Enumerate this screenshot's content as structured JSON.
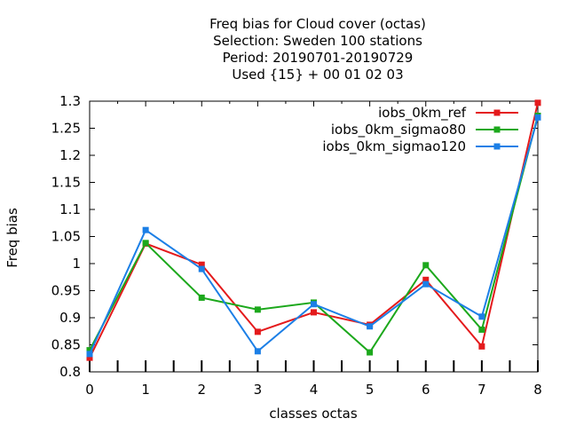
{
  "chart_data": {
    "type": "line",
    "title_lines": [
      "Freq bias  for Cloud cover (octas)",
      "Selection: Sweden    100 stations",
      "Period: 20190701-20190729",
      "Used {15} + 00 01 02 03"
    ],
    "xlabel": "classes octas",
    "ylabel": "Freq bias",
    "xlim": [
      0,
      8
    ],
    "ylim": [
      0.8,
      1.3
    ],
    "x_ticks": [
      "0",
      "1",
      "2",
      "3",
      "4",
      "5",
      "6",
      "7",
      "8"
    ],
    "y_ticks": [
      "0.8",
      "0.85",
      "0.9",
      "0.95",
      "1",
      "1.05",
      "1.1",
      "1.15",
      "1.2",
      "1.25",
      "1.3"
    ],
    "grid": false,
    "legend_position": "top-right",
    "x": [
      0,
      1,
      2,
      3,
      4,
      5,
      6,
      7,
      8
    ],
    "series": [
      {
        "name": "iobs_0km_ref",
        "color": "#e41a1c",
        "values": [
          0.826,
          1.037,
          0.998,
          0.874,
          0.91,
          0.887,
          0.97,
          0.847,
          1.297
        ]
      },
      {
        "name": "iobs_0km_sigmao80",
        "color": "#1ca81c",
        "values": [
          0.84,
          1.038,
          0.937,
          0.915,
          0.928,
          0.836,
          0.997,
          0.878,
          1.273
        ]
      },
      {
        "name": "iobs_0km_sigmao120",
        "color": "#1c7fe6",
        "values": [
          0.833,
          1.062,
          0.99,
          0.838,
          0.925,
          0.884,
          0.962,
          0.902,
          1.27
        ]
      }
    ]
  }
}
